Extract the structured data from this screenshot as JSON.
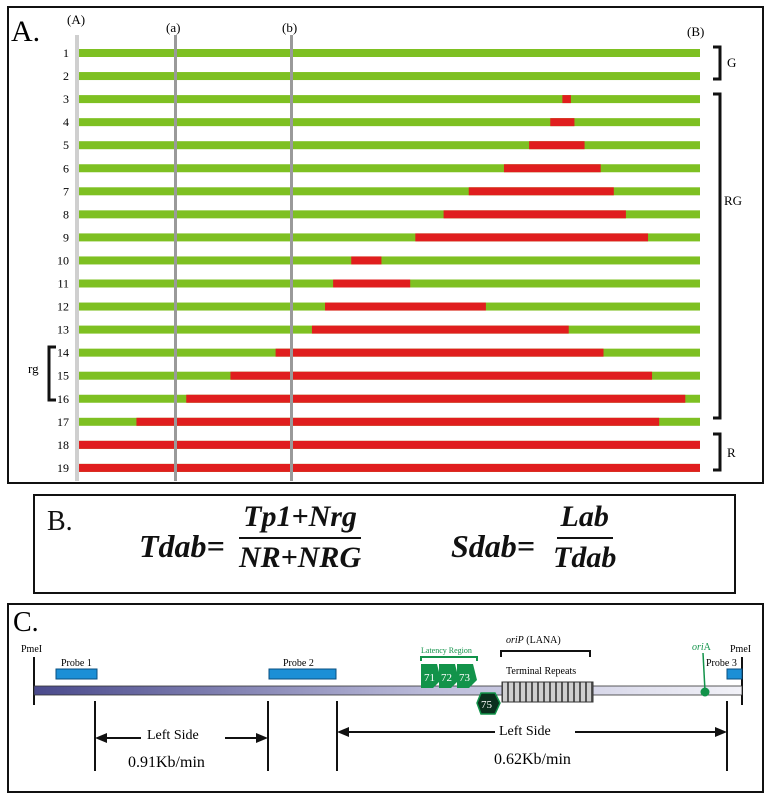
{
  "panel_a": {
    "letter": "A.",
    "markers": {
      "A": "(A)",
      "a": "(a)",
      "b": "(b)",
      "B": "(B)"
    },
    "rows": [
      {
        "n": "1",
        "red": null
      },
      {
        "n": "2",
        "red": null
      },
      {
        "n": "3",
        "red": [
          0.7784,
          0.7921
        ]
      },
      {
        "n": "4",
        "red": [
          0.7589,
          0.7978
        ]
      },
      {
        "n": "5",
        "red": [
          0.7248,
          0.8141
        ]
      },
      {
        "n": "6",
        "red": [
          0.6843,
          0.8401
        ]
      },
      {
        "n": "7",
        "red": [
          0.6276,
          0.8612
        ]
      },
      {
        "n": "8",
        "red": [
          0.5871,
          0.8807
        ]
      },
      {
        "n": "9",
        "red": [
          0.5416,
          0.9163
        ]
      },
      {
        "n": "10",
        "red": [
          0.4384,
          0.487
        ]
      },
      {
        "n": "11",
        "red": [
          0.4092,
          0.5333
        ]
      },
      {
        "n": "12",
        "red": [
          0.3962,
          0.6552
        ]
      },
      {
        "n": "13",
        "red": [
          0.3751,
          0.7886
        ]
      },
      {
        "n": "14",
        "red": [
          0.3166,
          0.8446
        ]
      },
      {
        "n": "15",
        "red": [
          0.2439,
          0.9228
        ]
      },
      {
        "n": "16",
        "red": [
          0.1727,
          0.9763
        ]
      },
      {
        "n": "17",
        "red": [
          0.0925,
          0.9342
        ]
      },
      {
        "n": "18",
        "red": [
          0,
          1
        ]
      },
      {
        "n": "19",
        "red": [
          0,
          1
        ]
      }
    ],
    "groups": {
      "G": "G",
      "RG": "RG",
      "R": "R",
      "rg": "rg"
    },
    "colors": {
      "green": "#7ec022",
      "red": "#e01e1e",
      "line": "#9a9a9a"
    }
  },
  "panel_b": {
    "letter": "B.",
    "tdab_lhs": "Tdab=",
    "tdab_num": "Tp1+Nrg",
    "tdab_den": "NR+NRG",
    "sdab_lhs": "Sdab=",
    "sdab_num": "Lab",
    "sdab_den": "Tdab"
  },
  "panel_c": {
    "letter": "C.",
    "pmei_left": "PmeI",
    "pmei_right": "PmeI",
    "probe1": "Probe 1",
    "probe2": "Probe 2",
    "probe3": "Probe 3",
    "latency_region": "Latency Region",
    "genes": [
      "71",
      "72",
      "73"
    ],
    "gene_75": "75",
    "orip_italic": "oriP",
    "orip_rest": " (LANA)",
    "terminal_repeats": "Terminal Repeats",
    "oria_italic": "ori",
    "oria_rest": "A",
    "left_side_1": "Left Side",
    "rate_1": "0.91Kb/min",
    "left_side_2": "Left Side",
    "rate_2": "0.62Kb/min",
    "colors": {
      "probe": "#1b8fd6",
      "latency": "#12934a",
      "oria": "#12934a"
    }
  }
}
